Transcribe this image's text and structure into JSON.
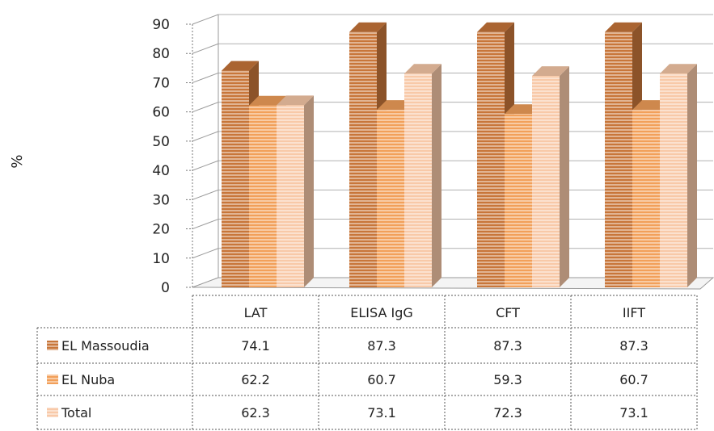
{
  "chart_data": {
    "type": "bar",
    "style": "3d-clustered-column-with-data-table",
    "ylabel": "%",
    "ylim": [
      0,
      90
    ],
    "yticks": [
      0,
      10,
      20,
      30,
      40,
      50,
      60,
      70,
      80,
      90
    ],
    "grid": true,
    "categories": [
      "LAT",
      "ELISA IgG",
      "CFT",
      "IIFT"
    ],
    "series": [
      {
        "name": "EL Massoudia",
        "values": [
          74.1,
          87.3,
          87.3,
          87.3
        ],
        "color": "#c8763a"
      },
      {
        "name": "EL Nuba",
        "values": [
          62.2,
          60.7,
          59.3,
          60.7
        ],
        "color": "#f2a05a"
      },
      {
        "name": "Total",
        "values": [
          62.3,
          73.1,
          72.3,
          73.1
        ],
        "color": "#f8c9a8"
      }
    ],
    "table_values": [
      [
        "74.1",
        "87.3",
        "87.3",
        "87.3"
      ],
      [
        "62.2",
        "60.7",
        "59.3",
        "60.7"
      ],
      [
        "62.3",
        "73.1",
        "72.3",
        "73.1"
      ]
    ]
  }
}
